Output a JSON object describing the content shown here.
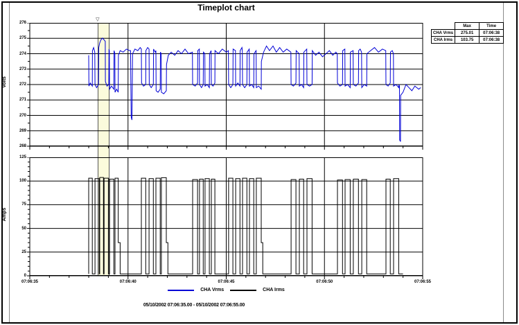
{
  "title": "Timeplot chart",
  "volt_axis": {
    "label": "Volts",
    "ticks": [
      276,
      275,
      274,
      273,
      272,
      271,
      270,
      269,
      268
    ]
  },
  "amp_axis": {
    "label": "Amps",
    "ticks": [
      125,
      100,
      75,
      50,
      25,
      0
    ]
  },
  "time_axis": {
    "labels": [
      "07:06:35",
      "07:06:40",
      "07:06:45",
      "07:06:50",
      "07:06:55"
    ],
    "tick_seconds": [
      0,
      5,
      10,
      15,
      20
    ]
  },
  "legend": [
    {
      "label": "CHA Vrms",
      "color": "#0000d6"
    },
    {
      "label": "CHA Irms",
      "color": "#000000"
    }
  ],
  "stats_table": {
    "headers": [
      "",
      "Max",
      "Time"
    ],
    "rows": [
      [
        "CHA Vrms",
        "275.01",
        "07:06:38"
      ],
      [
        "CHA Irms",
        "103.75",
        "07:06:38"
      ]
    ]
  },
  "footer": {
    "range_text": "05/10/2002 07:06:35.00 - 05/10/2002 07:06:55.00"
  },
  "highlight": {
    "t_start": 3.46,
    "t_end": 3.99
  },
  "chart_data": [
    {
      "type": "line",
      "name": "CHA Vrms",
      "ylabel": "Volts",
      "ylim": [
        268,
        276
      ],
      "x_start_label": "07:06:35",
      "x_end_label": "07:06:55",
      "xlim_seconds": [
        0,
        20
      ],
      "grid": true,
      "color": "#0000d6",
      "points": [
        [
          3.0,
          273.9
        ],
        [
          3.01,
          271.9
        ],
        [
          3.08,
          272.1
        ],
        [
          3.18,
          271.9
        ],
        [
          3.19,
          274.2
        ],
        [
          3.25,
          274.4
        ],
        [
          3.31,
          274.1
        ],
        [
          3.32,
          272.0
        ],
        [
          3.4,
          271.8
        ],
        [
          3.5,
          272.0
        ],
        [
          3.51,
          274.4
        ],
        [
          3.56,
          274.7
        ],
        [
          3.62,
          274.9
        ],
        [
          3.7,
          275.01
        ],
        [
          3.78,
          274.9
        ],
        [
          3.84,
          274.8
        ],
        [
          3.85,
          272.2
        ],
        [
          3.93,
          271.9
        ],
        [
          4.02,
          272.0
        ],
        [
          4.03,
          274.3
        ],
        [
          4.05,
          274.2
        ],
        [
          4.06,
          271.7
        ],
        [
          4.16,
          271.9
        ],
        [
          4.28,
          271.7
        ],
        [
          4.29,
          274.2
        ],
        [
          4.33,
          274.0
        ],
        [
          4.34,
          271.5
        ],
        [
          4.42,
          271.7
        ],
        [
          4.5,
          271.5
        ],
        [
          4.51,
          273.9
        ],
        [
          4.6,
          274.2
        ],
        [
          4.75,
          274.1
        ],
        [
          4.92,
          274.3
        ],
        [
          5.08,
          274.2
        ],
        [
          5.13,
          274.2
        ],
        [
          5.16,
          269.9
        ],
        [
          5.2,
          269.7
        ],
        [
          5.23,
          274.0
        ],
        [
          5.35,
          274.3
        ],
        [
          5.5,
          274.2
        ],
        [
          5.62,
          274.4
        ],
        [
          5.68,
          274.3
        ],
        [
          5.69,
          272.1
        ],
        [
          5.79,
          271.9
        ],
        [
          5.9,
          272.0
        ],
        [
          5.91,
          274.2
        ],
        [
          6.0,
          274.4
        ],
        [
          6.07,
          274.3
        ],
        [
          6.08,
          272.0
        ],
        [
          6.18,
          271.8
        ],
        [
          6.29,
          272.0
        ],
        [
          6.3,
          274.3
        ],
        [
          6.38,
          274.1
        ],
        [
          6.42,
          274.2
        ],
        [
          6.43,
          271.6
        ],
        [
          6.53,
          271.5
        ],
        [
          6.64,
          271.7
        ],
        [
          6.65,
          274.1
        ],
        [
          6.69,
          274.0
        ],
        [
          6.7,
          271.5
        ],
        [
          6.82,
          271.4
        ],
        [
          6.95,
          271.6
        ],
        [
          6.96,
          273.3
        ],
        [
          7.05,
          273.9
        ],
        [
          7.2,
          274.1
        ],
        [
          7.38,
          273.9
        ],
        [
          7.55,
          274.2
        ],
        [
          7.72,
          274.0
        ],
        [
          7.9,
          274.3
        ],
        [
          8.08,
          274.0
        ],
        [
          8.28,
          274.1
        ],
        [
          8.29,
          272.0
        ],
        [
          8.42,
          271.9
        ],
        [
          8.54,
          272.1
        ],
        [
          8.55,
          274.2
        ],
        [
          8.63,
          274.3
        ],
        [
          8.64,
          272.0
        ],
        [
          8.74,
          271.8
        ],
        [
          8.83,
          272.0
        ],
        [
          8.84,
          274.1
        ],
        [
          8.91,
          274.0
        ],
        [
          8.92,
          271.9
        ],
        [
          9.03,
          272.0
        ],
        [
          9.14,
          271.8
        ],
        [
          9.15,
          274.0
        ],
        [
          9.23,
          274.2
        ],
        [
          9.24,
          272.0
        ],
        [
          9.33,
          271.9
        ],
        [
          9.42,
          272.1
        ],
        [
          9.43,
          274.2
        ],
        [
          9.6,
          274.0
        ],
        [
          9.8,
          274.3
        ],
        [
          10.0,
          274.1
        ],
        [
          10.11,
          274.2
        ],
        [
          10.12,
          272.0
        ],
        [
          10.23,
          271.8
        ],
        [
          10.34,
          272.0
        ],
        [
          10.35,
          274.3
        ],
        [
          10.47,
          274.2
        ],
        [
          10.48,
          271.9
        ],
        [
          10.59,
          272.1
        ],
        [
          10.7,
          271.9
        ],
        [
          10.71,
          274.2
        ],
        [
          10.8,
          274.4
        ],
        [
          10.82,
          274.2
        ],
        [
          10.83,
          272.0
        ],
        [
          10.94,
          271.8
        ],
        [
          11.05,
          272.0
        ],
        [
          11.06,
          274.1
        ],
        [
          11.17,
          274.3
        ],
        [
          11.18,
          271.9
        ],
        [
          11.29,
          272.0
        ],
        [
          11.4,
          271.8
        ],
        [
          11.41,
          274.0
        ],
        [
          11.52,
          274.2
        ],
        [
          11.53,
          271.8
        ],
        [
          11.65,
          271.9
        ],
        [
          11.78,
          271.7
        ],
        [
          11.79,
          273.5
        ],
        [
          11.9,
          274.1
        ],
        [
          12.05,
          274.5
        ],
        [
          12.2,
          274.2
        ],
        [
          12.38,
          274.5
        ],
        [
          12.55,
          274.1
        ],
        [
          12.72,
          274.4
        ],
        [
          12.9,
          274.1
        ],
        [
          13.08,
          274.3
        ],
        [
          13.29,
          274.1
        ],
        [
          13.3,
          272.0
        ],
        [
          13.42,
          271.9
        ],
        [
          13.55,
          272.1
        ],
        [
          13.56,
          274.2
        ],
        [
          13.71,
          274.0
        ],
        [
          13.72,
          271.9
        ],
        [
          13.83,
          272.0
        ],
        [
          13.94,
          271.8
        ],
        [
          13.95,
          274.1
        ],
        [
          14.1,
          274.3
        ],
        [
          14.11,
          272.0
        ],
        [
          14.24,
          271.9
        ],
        [
          14.37,
          272.0
        ],
        [
          14.38,
          274.2
        ],
        [
          14.55,
          273.9
        ],
        [
          14.72,
          274.1
        ],
        [
          14.9,
          273.8
        ],
        [
          15.08,
          274.0
        ],
        [
          15.25,
          274.2
        ],
        [
          15.42,
          273.9
        ],
        [
          15.58,
          274.1
        ],
        [
          15.65,
          274.0
        ],
        [
          15.66,
          272.1
        ],
        [
          15.79,
          271.9
        ],
        [
          15.92,
          272.0
        ],
        [
          15.93,
          274.2
        ],
        [
          16.04,
          274.3
        ],
        [
          16.05,
          271.9
        ],
        [
          16.18,
          272.0
        ],
        [
          16.31,
          271.8
        ],
        [
          16.32,
          274.1
        ],
        [
          16.46,
          274.2
        ],
        [
          16.47,
          272.0
        ],
        [
          16.6,
          271.9
        ],
        [
          16.73,
          272.1
        ],
        [
          16.74,
          274.2
        ],
        [
          16.82,
          274.3
        ],
        [
          16.89,
          274.1
        ],
        [
          16.9,
          271.8
        ],
        [
          17.02,
          272.0
        ],
        [
          17.15,
          271.9
        ],
        [
          17.16,
          274.0
        ],
        [
          17.35,
          274.2
        ],
        [
          17.55,
          274.4
        ],
        [
          17.75,
          274.1
        ],
        [
          17.95,
          274.3
        ],
        [
          18.12,
          274.2
        ],
        [
          18.13,
          272.0
        ],
        [
          18.24,
          271.9
        ],
        [
          18.35,
          272.1
        ],
        [
          18.36,
          274.1
        ],
        [
          18.45,
          274.2
        ],
        [
          18.51,
          274.0
        ],
        [
          18.52,
          271.9
        ],
        [
          18.65,
          272.0
        ],
        [
          18.78,
          271.8
        ],
        [
          18.79,
          272.0
        ],
        [
          18.82,
          271.9
        ],
        [
          18.83,
          268.4
        ],
        [
          18.87,
          268.3
        ],
        [
          18.88,
          271.3
        ],
        [
          19.0,
          271.5
        ],
        [
          19.15,
          272.0
        ],
        [
          19.3,
          271.8
        ],
        [
          19.45,
          271.6
        ],
        [
          19.6,
          271.9
        ],
        [
          19.8,
          271.7
        ],
        [
          19.9,
          271.8
        ]
      ]
    },
    {
      "type": "line",
      "name": "CHA Irms",
      "ylabel": "Amps",
      "ylim": [
        0,
        125
      ],
      "x_start_label": "07:06:35",
      "x_end_label": "07:06:55",
      "xlim_seconds": [
        0,
        20
      ],
      "grid": true,
      "color": "#000000",
      "draw": "steps",
      "baseline": 2,
      "step_points": [
        [
          3.0,
          103
        ],
        [
          3.18,
          2
        ],
        [
          3.32,
          102.5
        ],
        [
          3.53,
          2
        ],
        [
          3.56,
          103.75
        ],
        [
          3.75,
          2
        ],
        [
          3.78,
          103
        ],
        [
          4.0,
          2
        ],
        [
          4.06,
          102
        ],
        [
          4.28,
          2
        ],
        [
          4.34,
          103
        ],
        [
          4.5,
          35
        ],
        [
          4.6,
          2
        ],
        [
          5.68,
          103
        ],
        [
          5.9,
          2
        ],
        [
          6.07,
          102.5
        ],
        [
          6.29,
          2
        ],
        [
          6.42,
          103
        ],
        [
          6.64,
          2
        ],
        [
          6.7,
          103.5
        ],
        [
          6.95,
          35
        ],
        [
          7.03,
          2
        ],
        [
          8.29,
          101.5
        ],
        [
          8.54,
          2
        ],
        [
          8.64,
          102
        ],
        [
          8.83,
          2
        ],
        [
          8.92,
          102.5
        ],
        [
          9.14,
          2
        ],
        [
          9.24,
          102
        ],
        [
          9.42,
          2
        ],
        [
          10.12,
          103
        ],
        [
          10.34,
          2
        ],
        [
          10.48,
          102.5
        ],
        [
          10.7,
          2
        ],
        [
          10.83,
          103
        ],
        [
          11.05,
          2
        ],
        [
          11.18,
          102.5
        ],
        [
          11.4,
          2
        ],
        [
          11.53,
          103
        ],
        [
          11.78,
          35
        ],
        [
          11.86,
          2
        ],
        [
          13.3,
          101.5
        ],
        [
          13.55,
          2
        ],
        [
          13.72,
          102
        ],
        [
          13.94,
          2
        ],
        [
          14.11,
          102.5
        ],
        [
          14.37,
          2
        ],
        [
          15.66,
          101
        ],
        [
          15.92,
          2
        ],
        [
          16.05,
          101.5
        ],
        [
          16.31,
          2
        ],
        [
          16.47,
          102
        ],
        [
          16.73,
          2
        ],
        [
          16.9,
          101.5
        ],
        [
          17.15,
          2
        ],
        [
          18.13,
          102
        ],
        [
          18.35,
          2
        ],
        [
          18.52,
          102.5
        ],
        [
          18.78,
          2
        ],
        [
          19.0,
          2
        ]
      ]
    }
  ]
}
